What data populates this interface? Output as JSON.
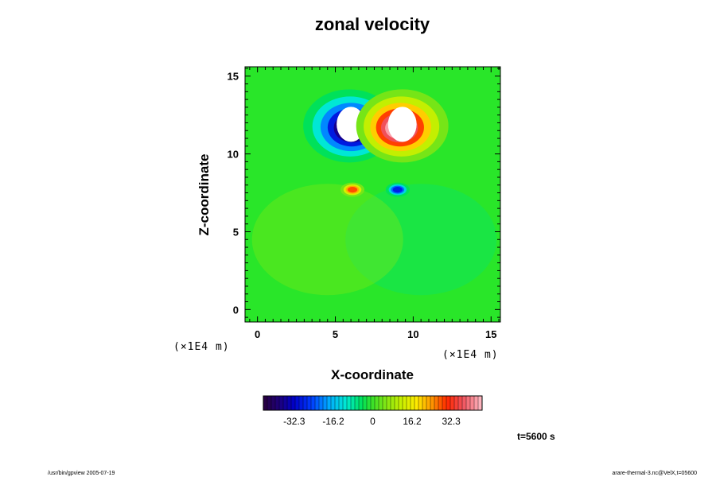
{
  "chart_data": {
    "type": "heatmap",
    "title": "zonal velocity",
    "xlabel": "X-coordinate",
    "ylabel": "Z-coordinate",
    "x_unit_label": "(×1E4 m)",
    "y_unit_label": "(×1E4 m)",
    "xlim": [
      -0.8,
      15.6
    ],
    "ylim": [
      -0.8,
      15.6
    ],
    "x_ticks": [
      0,
      5,
      10,
      15
    ],
    "y_ticks": [
      0,
      5,
      10,
      15
    ],
    "x_tick_labels": [
      "0",
      "5",
      "10",
      "15"
    ],
    "y_tick_labels": [
      "0",
      "5",
      "10",
      "15"
    ],
    "colorbar": {
      "vmin": -45,
      "vmax": 45,
      "ticks": [
        -32.3,
        -16.2,
        0,
        16.2,
        32.3
      ],
      "tick_labels": [
        "-32.3",
        "-16.2",
        "0",
        "16.2",
        "32.3"
      ]
    },
    "field_features": [
      {
        "name": "negative core",
        "x": 5.9,
        "z": 11.8,
        "value": -45
      },
      {
        "name": "positive core",
        "x": 9.3,
        "z": 11.8,
        "value": 45
      },
      {
        "name": "positive lobe",
        "x": 6.1,
        "z": 7.7,
        "value": 30
      },
      {
        "name": "negative lobe",
        "x": 9.0,
        "z": 7.7,
        "value": -30
      }
    ],
    "grid": false,
    "legend": "colorbar-bottom"
  },
  "annotations": {
    "time": "t=5600 s",
    "footer_left": "/usr/bin/gpview 2005-07-19",
    "footer_right": "arare-thermal-3.nc@VelX,t=05600"
  }
}
